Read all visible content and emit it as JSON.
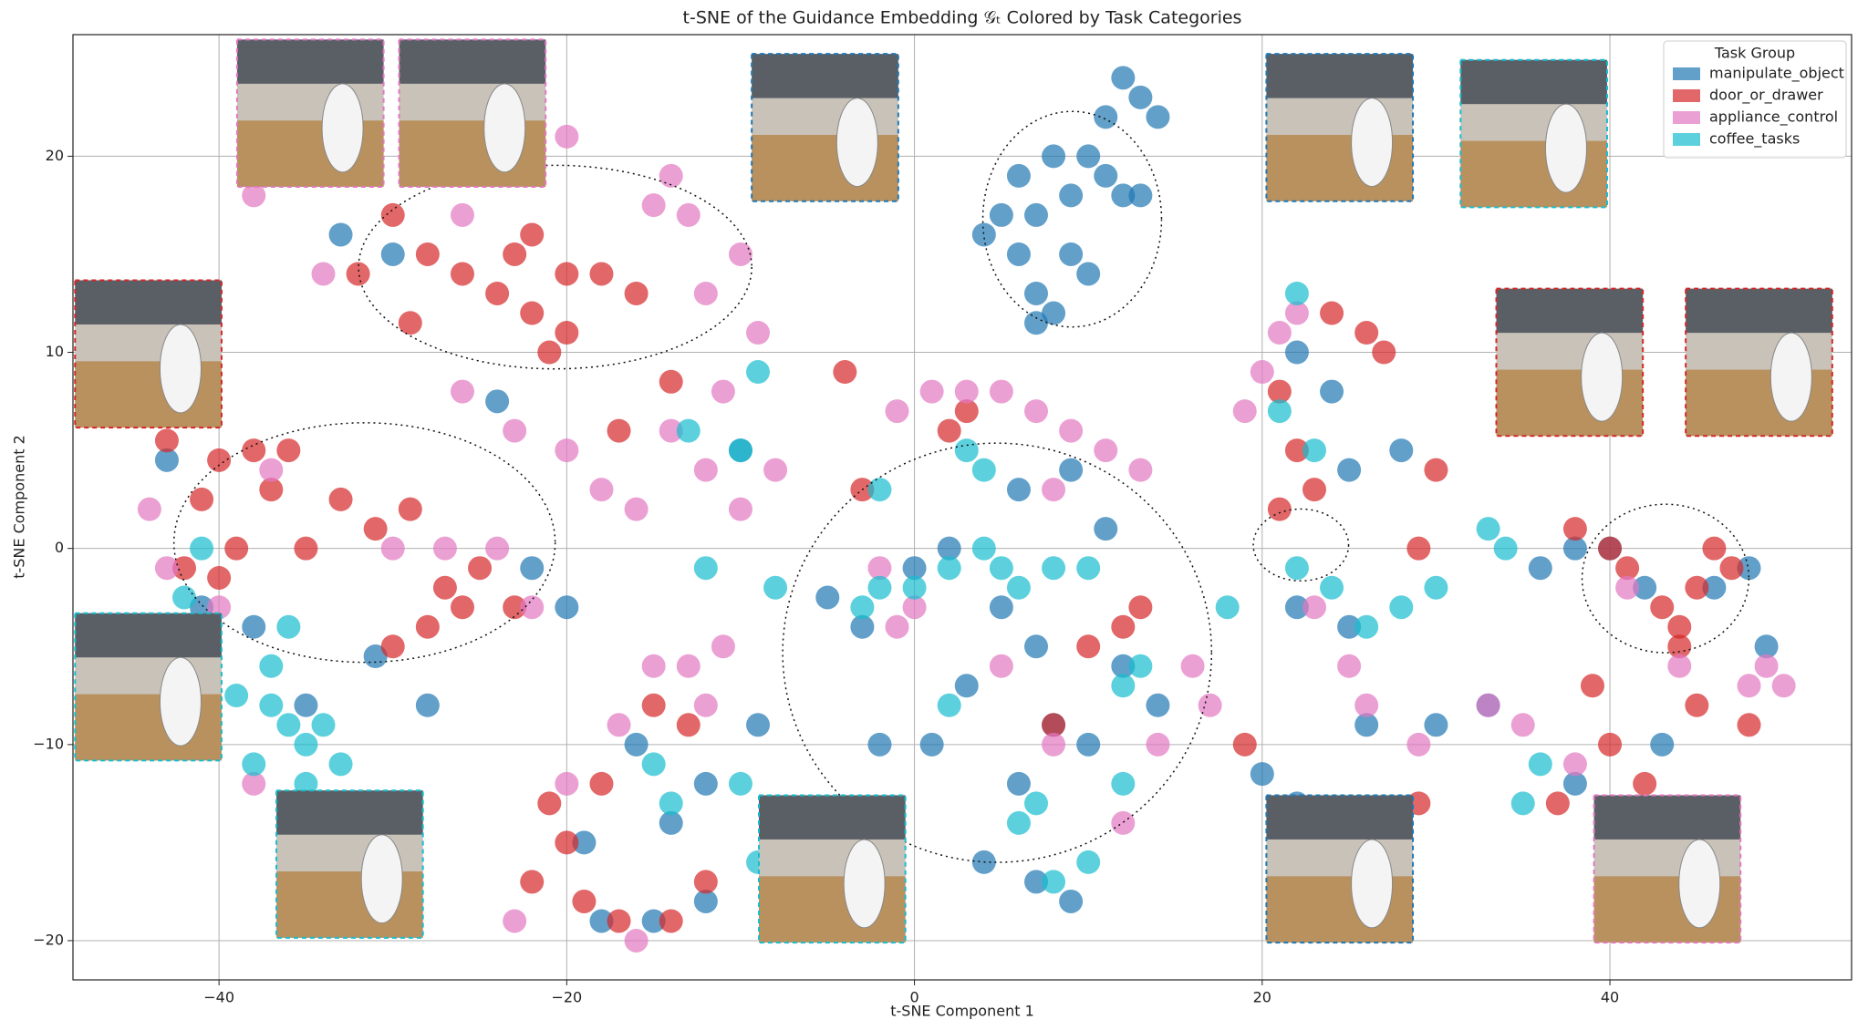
{
  "chart_data": {
    "type": "scatter",
    "title": "t-SNE of the Guidance Embedding 𝒢ₜ Colored by Task Categories",
    "x_label": "t-SNE Component 1",
    "y_label": "t-SNE Component 2",
    "xlim": [
      -48.4,
      53.9
    ],
    "ylim": [
      -22,
      26.2
    ],
    "xticks": [
      {
        "value": -40,
        "label": "−40"
      },
      {
        "value": -20,
        "label": "−20"
      },
      0,
      20,
      40
    ],
    "yticks": [
      {
        "value": -20,
        "label": "−20"
      },
      {
        "value": -10,
        "label": "−10"
      },
      0,
      10,
      20
    ],
    "grid": true,
    "legend_title": "Task Group",
    "legend_position": "upper right",
    "series": [
      {
        "name": "manipulate_object",
        "color": "#1f77b4",
        "x": [
          12,
          13,
          14,
          11,
          10,
          8,
          6,
          9,
          12,
          7,
          5,
          4,
          6,
          9,
          7,
          8,
          10,
          11,
          13,
          7,
          -5,
          -3,
          0,
          2,
          5,
          7,
          8,
          10,
          6,
          4,
          7,
          9,
          12,
          14,
          3,
          1,
          -2,
          6,
          9,
          11,
          -43,
          -41,
          -38,
          -35,
          -31,
          -28,
          -22,
          -20,
          -16,
          -14,
          -12,
          -18,
          -15,
          -12,
          -19,
          -24,
          -30,
          -33,
          -9,
          -10,
          22,
          24,
          25,
          22,
          25,
          20,
          22,
          26,
          30,
          33,
          36,
          38,
          40,
          42,
          46,
          48,
          49,
          38,
          43,
          28
        ],
        "y": [
          24,
          23,
          22,
          22,
          20,
          20,
          19,
          18,
          18,
          17,
          17,
          16,
          15,
          15,
          13,
          12,
          14,
          19,
          18,
          11.5,
          -2.5,
          -4,
          -1,
          0,
          -3,
          -5,
          -9,
          -10,
          -12,
          -16,
          -17,
          -18,
          -6,
          -8,
          -7,
          -10,
          -10,
          3,
          4,
          1,
          4.5,
          -3,
          -4,
          -8,
          -5.5,
          -8,
          -1,
          -3,
          -10,
          -14,
          -12,
          -19,
          -19,
          -18,
          -15,
          7.5,
          15,
          16,
          -9,
          5,
          10,
          8,
          4,
          -3,
          -4,
          -11.5,
          -13,
          -9,
          -9,
          -8,
          -1,
          0,
          0,
          -2,
          -2,
          -1,
          -5,
          -12,
          -10,
          5
        ]
      },
      {
        "name": "door_or_drawer",
        "color": "#d62728",
        "x": [
          -30,
          -28,
          -26,
          -24,
          -22,
          -22,
          -20,
          -20,
          -18,
          -16,
          -21,
          -23,
          -29,
          -32,
          -43,
          -41,
          -40,
          -38,
          -37,
          -36,
          -39,
          -42,
          -40,
          -33,
          -31,
          -29,
          -27,
          -26,
          -25,
          -28,
          -23,
          -30,
          -35,
          -21,
          -20,
          -22,
          -19,
          -15,
          -13,
          -12,
          -14,
          -18,
          -17,
          24,
          26,
          27,
          21,
          22,
          23,
          21,
          29,
          30,
          38,
          40,
          41,
          43,
          44,
          45,
          46,
          47,
          44,
          40,
          42,
          45,
          48,
          39,
          37,
          29,
          2,
          8,
          12,
          10,
          19,
          13,
          3,
          -3,
          -4,
          -14,
          -17
        ],
        "y": [
          17,
          15,
          14,
          13,
          12,
          16,
          14,
          11,
          14,
          13,
          10,
          15,
          11.5,
          14,
          5.5,
          2.5,
          4.5,
          5,
          3,
          5,
          0,
          -1,
          -1.5,
          2.5,
          1,
          2,
          -2,
          -3,
          -1,
          -4,
          -3,
          -5,
          0,
          -13,
          -15,
          -17,
          -18,
          -8,
          -9,
          -17,
          -19,
          -12,
          -19,
          12,
          11,
          10,
          8,
          5,
          3,
          2,
          0,
          4,
          1,
          0,
          -1,
          -3,
          -4,
          -2,
          0,
          -1,
          -5,
          -10,
          -12,
          -8,
          -9,
          -7,
          -13,
          -13,
          6,
          -9,
          -4,
          -5,
          -10,
          -3,
          7,
          3,
          9,
          8.5,
          6
        ]
      },
      {
        "name": "appliance_control",
        "color": "#e377c2",
        "x": [
          -22,
          -20,
          -15,
          -13,
          -14,
          -12,
          -10,
          -9,
          -26,
          -34,
          -38,
          -26,
          -23,
          -20,
          -18,
          -16,
          -14,
          -12,
          -10,
          -8,
          -11,
          -24,
          -22,
          -27,
          -30,
          -1,
          1,
          3,
          5,
          7,
          9,
          11,
          13,
          8,
          -2,
          0,
          -1,
          5,
          8,
          12,
          16,
          17,
          14,
          -15,
          -13,
          -12,
          -17,
          -20,
          -23,
          -16,
          -11,
          21,
          22,
          20,
          23,
          25,
          26,
          33,
          35,
          41,
          44,
          49,
          50,
          48,
          38,
          29,
          19,
          -38,
          -40,
          -43,
          -44,
          -37
        ],
        "y": [
          20,
          21,
          17.5,
          17,
          19,
          13,
          15,
          11,
          17,
          14,
          18,
          8,
          6,
          5,
          3,
          2,
          6,
          4,
          2,
          4,
          8,
          0,
          -3,
          0,
          0,
          7,
          8,
          8,
          8,
          7,
          6,
          5,
          4,
          3,
          -1,
          -3,
          -4,
          -6,
          -10,
          -14,
          -6,
          -8,
          -10,
          -6,
          -6,
          -8,
          -9,
          -12,
          -19,
          -20,
          -5,
          11,
          12,
          9,
          -3,
          -6,
          -8,
          -8,
          -9,
          -2,
          -6,
          -6,
          -7,
          -7,
          -11,
          -10,
          7,
          -12,
          -3,
          -1,
          2,
          4
        ]
      },
      {
        "name": "coffee_tasks",
        "color": "#17becf",
        "x": [
          -39,
          -37,
          -36,
          -35,
          -33,
          -37,
          -35,
          -38,
          -36,
          -41,
          -42,
          -34,
          -3,
          -2,
          0,
          2,
          4,
          5,
          6,
          8,
          10,
          12,
          13,
          7,
          6,
          8,
          10,
          12,
          4,
          3,
          -8,
          -12,
          -15,
          -14,
          -9,
          -10,
          -9,
          22,
          21,
          23,
          24,
          22,
          26,
          28,
          30,
          33,
          34,
          36,
          35,
          -13,
          -10,
          2,
          18,
          -2
        ],
        "y": [
          -7.5,
          -8,
          -9,
          -10,
          -11,
          -6,
          -12,
          -11,
          -4,
          0,
          -2.5,
          -9,
          -3,
          -2,
          -2,
          -1,
          0,
          -1,
          -2,
          -1,
          -1,
          -7,
          -6,
          -13,
          -14,
          -17,
          -16,
          -12,
          4,
          5,
          -2,
          -1,
          -11,
          -13,
          -16,
          -12,
          9,
          13,
          7,
          5,
          -2,
          -1,
          -4,
          -3,
          -2,
          1,
          0,
          -11,
          -13,
          6,
          5,
          -8,
          -3,
          3
        ]
      }
    ]
  }
}
